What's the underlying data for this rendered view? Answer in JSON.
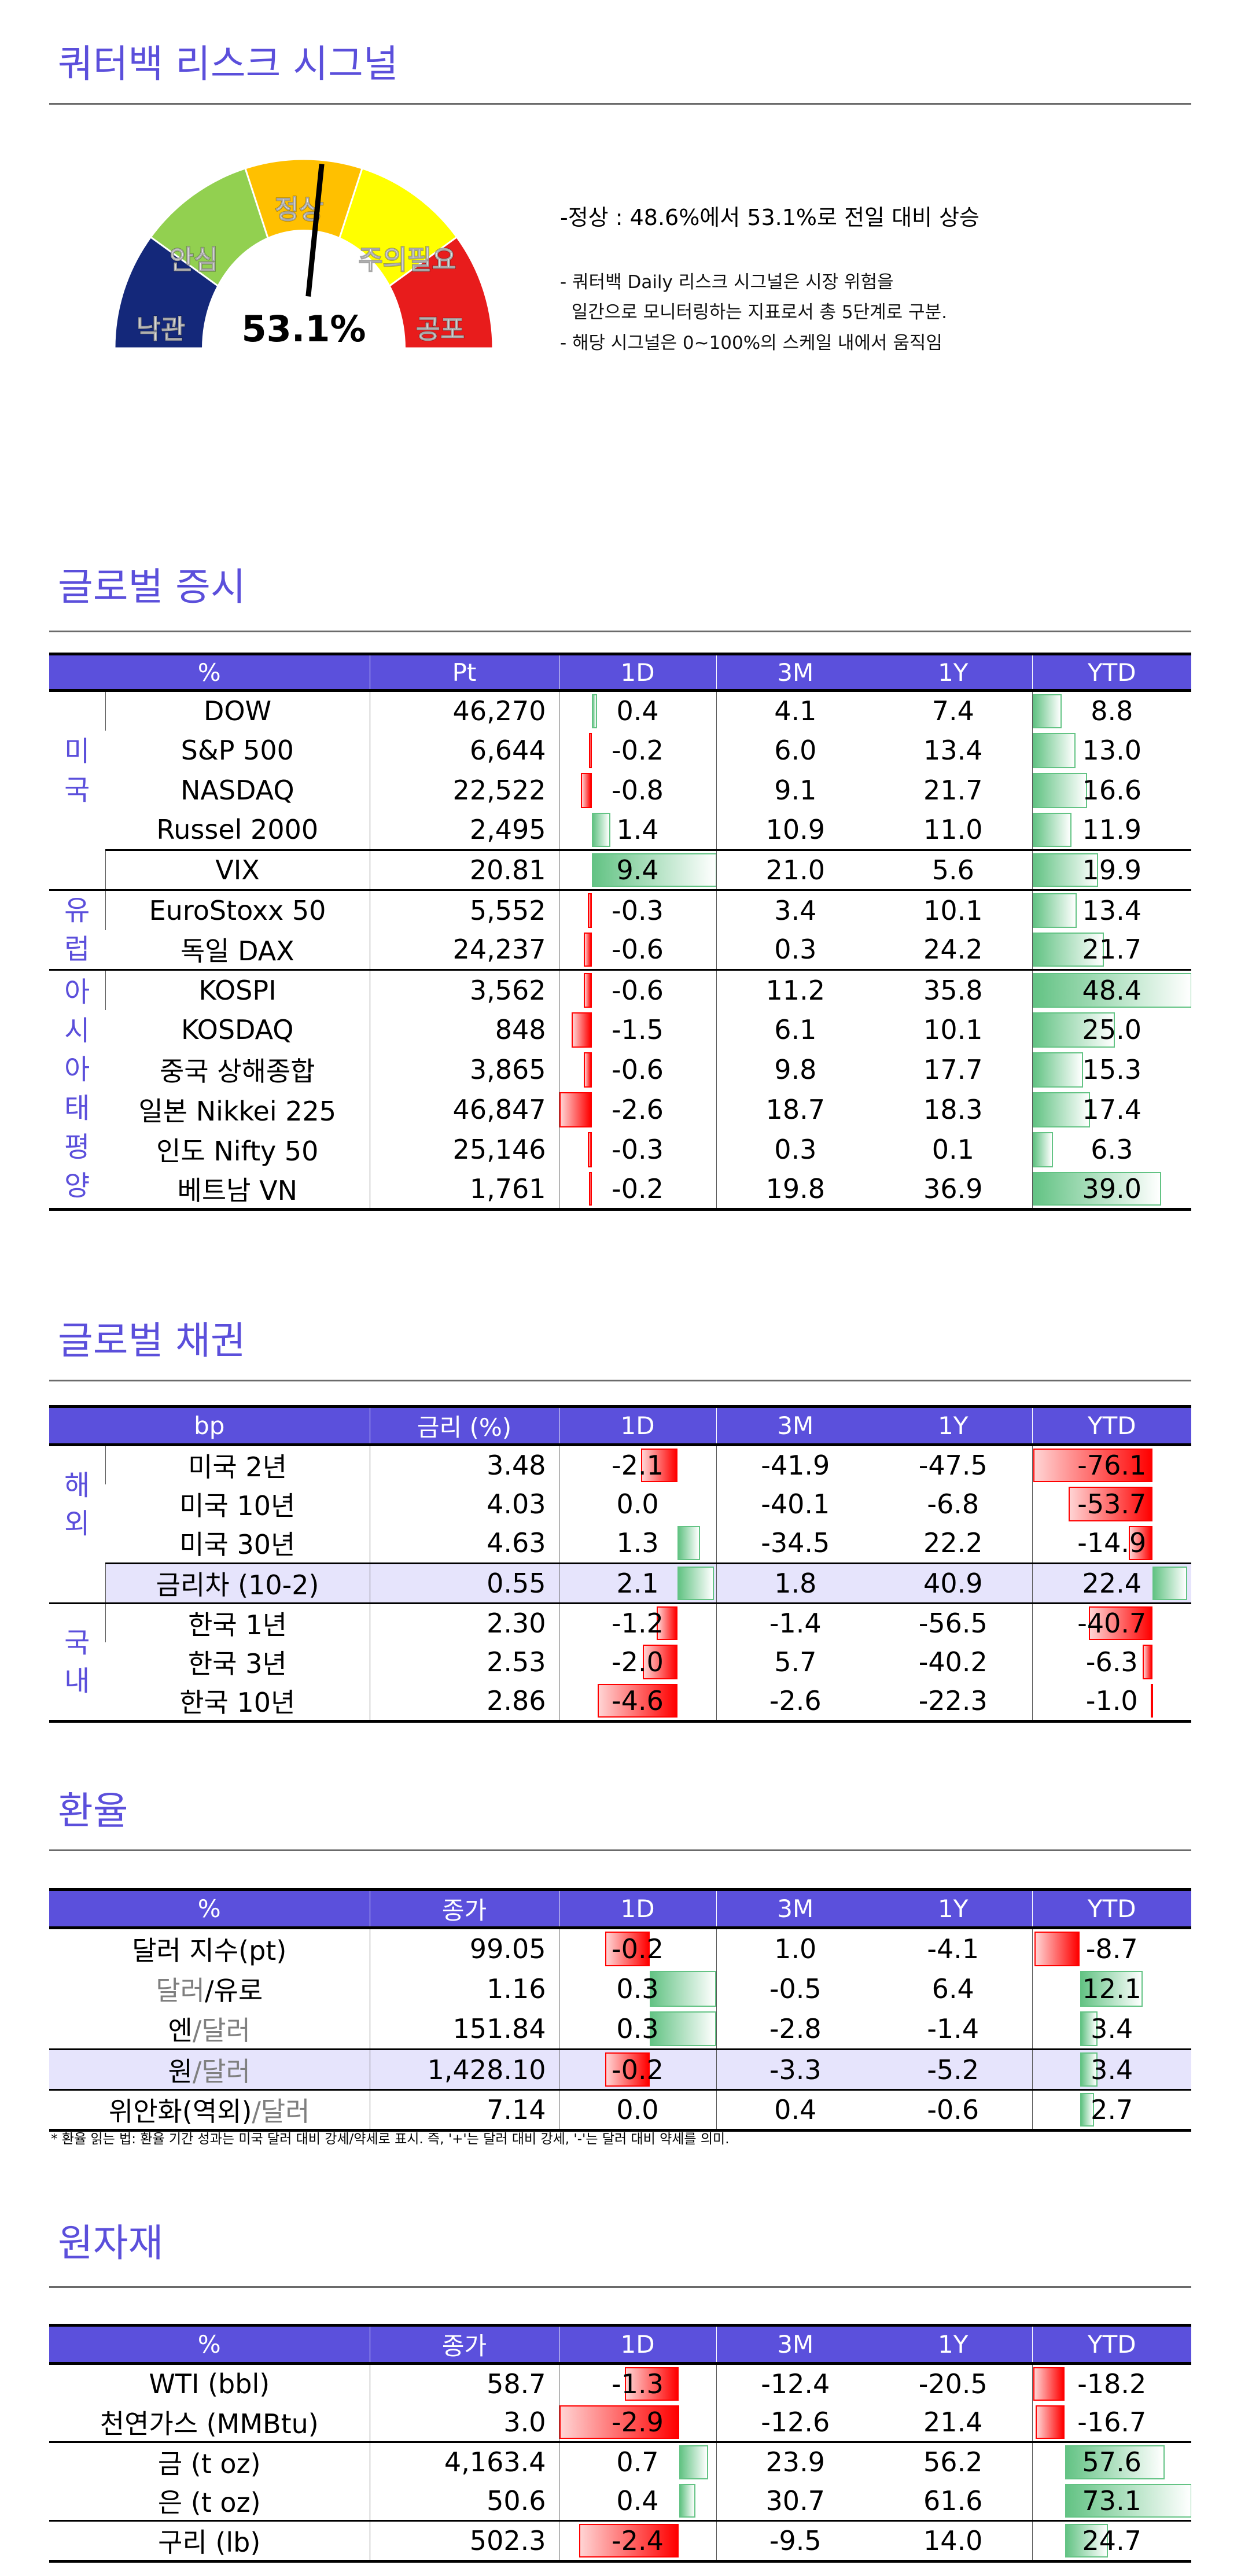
{
  "risk_signal": {
    "title": "쿼터백 리스크 시그널",
    "gauge": {
      "value": 53.1,
      "value_label": "53.1%",
      "segments": [
        {
          "label": "낙관",
          "color": "#14287a"
        },
        {
          "label": "안심",
          "color": "#92d050"
        },
        {
          "label": "정상",
          "color": "#ffc000"
        },
        {
          "label": "주의필요",
          "color": "#ffff00"
        },
        {
          "label": "공포",
          "color": "#e81c1c"
        }
      ]
    },
    "summary": "-정상 : 48.6%에서 53.1%로 전일 대비 상승",
    "notes": [
      "- 쿼터백 Daily 리스크 시그널은 시장 위험을",
      "  일간으로 모니터링하는 지표로서 총 5단계로 구분.",
      "- 해당 시그널은 0~100%의 스케일 내에서 움직임"
    ]
  },
  "equities": {
    "title": "글로벌 증시",
    "headers": [
      "%",
      "Pt",
      "1D",
      "3M",
      "1Y",
      "YTD"
    ],
    "groups": [
      {
        "region": "미국",
        "rows": [
          {
            "name": "DOW",
            "value": "46,270",
            "d1": "0.4",
            "m3": "4.1",
            "y1": "7.4",
            "ytd": "8.8"
          },
          {
            "name": "S&P 500",
            "value": "6,644",
            "d1": "-0.2",
            "m3": "6.0",
            "y1": "13.4",
            "ytd": "13.0"
          },
          {
            "name": "NASDAQ",
            "value": "22,522",
            "d1": "-0.8",
            "m3": "9.1",
            "y1": "21.7",
            "ytd": "16.6"
          },
          {
            "name": "Russel 2000",
            "value": "2,495",
            "d1": "1.4",
            "m3": "10.9",
            "y1": "11.0",
            "ytd": "11.9"
          }
        ]
      },
      {
        "region": "",
        "rows": [
          {
            "name": "VIX",
            "value": "20.81",
            "d1": "9.4",
            "m3": "21.0",
            "y1": "5.6",
            "ytd": "19.9"
          }
        ]
      },
      {
        "region": "유럽",
        "rows": [
          {
            "name": "EuroStoxx 50",
            "value": "5,552",
            "d1": "-0.3",
            "m3": "3.4",
            "y1": "10.1",
            "ytd": "13.4"
          },
          {
            "name": "독일 DAX",
            "value": "24,237",
            "d1": "-0.6",
            "m3": "0.3",
            "y1": "24.2",
            "ytd": "21.7"
          }
        ]
      },
      {
        "region": "아시아태평양",
        "rows": [
          {
            "name": "KOSPI",
            "value": "3,562",
            "d1": "-0.6",
            "m3": "11.2",
            "y1": "35.8",
            "ytd": "48.4"
          },
          {
            "name": "KOSDAQ",
            "value": "848",
            "d1": "-1.5",
            "m3": "6.1",
            "y1": "10.1",
            "ytd": "25.0"
          },
          {
            "name": "중국 상해종합",
            "value": "3,865",
            "d1": "-0.6",
            "m3": "9.8",
            "y1": "17.7",
            "ytd": "15.3"
          },
          {
            "name": "일본 Nikkei 225",
            "value": "46,847",
            "d1": "-2.6",
            "m3": "18.7",
            "y1": "18.3",
            "ytd": "17.4"
          },
          {
            "name": "인도 Nifty 50",
            "value": "25,146",
            "d1": "-0.3",
            "m3": "0.3",
            "y1": "0.1",
            "ytd": "6.3"
          },
          {
            "name": "베트남 VN",
            "value": "1,761",
            "d1": "-0.2",
            "m3": "19.8",
            "y1": "36.9",
            "ytd": "39.0"
          }
        ]
      }
    ]
  },
  "bonds": {
    "title": "글로벌 채권",
    "headers": [
      "bp",
      "금리 (%)",
      "1D",
      "3M",
      "1Y",
      "YTD"
    ],
    "groups": [
      {
        "region": "해외",
        "rows": [
          {
            "name": "미국 2년",
            "value": "3.48",
            "d1": "-2.1",
            "m3": "-41.9",
            "y1": "-47.5",
            "ytd": "-76.1"
          },
          {
            "name": "미국 10년",
            "value": "4.03",
            "d1": "0.0",
            "m3": "-40.1",
            "y1": "-6.8",
            "ytd": "-53.7"
          },
          {
            "name": "미국 30년",
            "value": "4.63",
            "d1": "1.3",
            "m3": "-34.5",
            "y1": "22.2",
            "ytd": "-14.9"
          }
        ]
      },
      {
        "region": "",
        "highlight": true,
        "rows": [
          {
            "name": "금리차 (10-2)",
            "value": "0.55",
            "d1": "2.1",
            "m3": "1.8",
            "y1": "40.9",
            "ytd": "22.4"
          }
        ]
      },
      {
        "region": "국내",
        "rows": [
          {
            "name": "한국 1년",
            "value": "2.30",
            "d1": "-1.2",
            "m3": "-1.4",
            "y1": "-56.5",
            "ytd": "-40.7"
          },
          {
            "name": "한국 3년",
            "value": "2.53",
            "d1": "-2.0",
            "m3": "5.7",
            "y1": "-40.2",
            "ytd": "-6.3"
          },
          {
            "name": "한국 10년",
            "value": "2.86",
            "d1": "-4.6",
            "m3": "-2.6",
            "y1": "-22.3",
            "ytd": "-1.0"
          }
        ]
      }
    ]
  },
  "fx": {
    "title": "환율",
    "headers": [
      "%",
      "종가",
      "1D",
      "3M",
      "1Y",
      "YTD"
    ],
    "groups": [
      {
        "rows": [
          {
            "name": [
              {
                "t": "달러 지수(pt)"
              }
            ],
            "value": "99.05",
            "d1": "-0.2",
            "m3": "1.0",
            "y1": "-4.1",
            "ytd": "-8.7"
          },
          {
            "name": [
              {
                "t": "달러",
                "muted": true
              },
              {
                "t": "/유로"
              }
            ],
            "value": "1.16",
            "d1": "0.3",
            "m3": "-0.5",
            "y1": "6.4",
            "ytd": "12.1"
          },
          {
            "name": [
              {
                "t": "엔"
              },
              {
                "t": "/달러",
                "muted": true
              }
            ],
            "value": "151.84",
            "d1": "0.3",
            "m3": "-2.8",
            "y1": "-1.4",
            "ytd": "3.4"
          }
        ]
      },
      {
        "highlight": true,
        "rows": [
          {
            "name": [
              {
                "t": "원"
              },
              {
                "t": "/달러",
                "muted": true
              }
            ],
            "value": "1,428.10",
            "d1": "-0.2",
            "m3": "-3.3",
            "y1": "-5.2",
            "ytd": "3.4"
          }
        ]
      },
      {
        "rows": [
          {
            "name": [
              {
                "t": "위안화(역외)"
              },
              {
                "t": "/달러",
                "muted": true
              }
            ],
            "value": "7.14",
            "d1": "0.0",
            "m3": "0.4",
            "y1": "-0.6",
            "ytd": "2.7"
          }
        ]
      }
    ],
    "note": "* 환율 읽는 법: 환율 기간 성과는 미국 달러 대비 강세/약세로 표시. 즉, '+'는 달러 대비 강세, '-'는 달러 대비 약세를 의미."
  },
  "commodities": {
    "title": "원자재",
    "headers": [
      "%",
      "종가",
      "1D",
      "3M",
      "1Y",
      "YTD"
    ],
    "groups": [
      {
        "rows": [
          {
            "name": "WTI (bbl)",
            "value": "58.7",
            "d1": "-1.3",
            "m3": "-12.4",
            "y1": "-20.5",
            "ytd": "-18.2"
          },
          {
            "name": "천연가스 (MMBtu)",
            "value": "3.0",
            "d1": "-2.9",
            "m3": "-12.6",
            "y1": "21.4",
            "ytd": "-16.7"
          }
        ]
      },
      {
        "rows": [
          {
            "name": "금 (t oz)",
            "value": "4,163.4",
            "d1": "0.7",
            "m3": "23.9",
            "y1": "56.2",
            "ytd": "57.6"
          },
          {
            "name": "은 (t oz)",
            "value": "50.6",
            "d1": "0.4",
            "m3": "30.7",
            "y1": "61.6",
            "ytd": "73.1"
          }
        ]
      },
      {
        "rows": [
          {
            "name": "구리 (lb)",
            "value": "502.3",
            "d1": "-2.4",
            "m3": "-9.5",
            "y1": "14.0",
            "ytd": "24.7"
          }
        ]
      }
    ]
  }
}
